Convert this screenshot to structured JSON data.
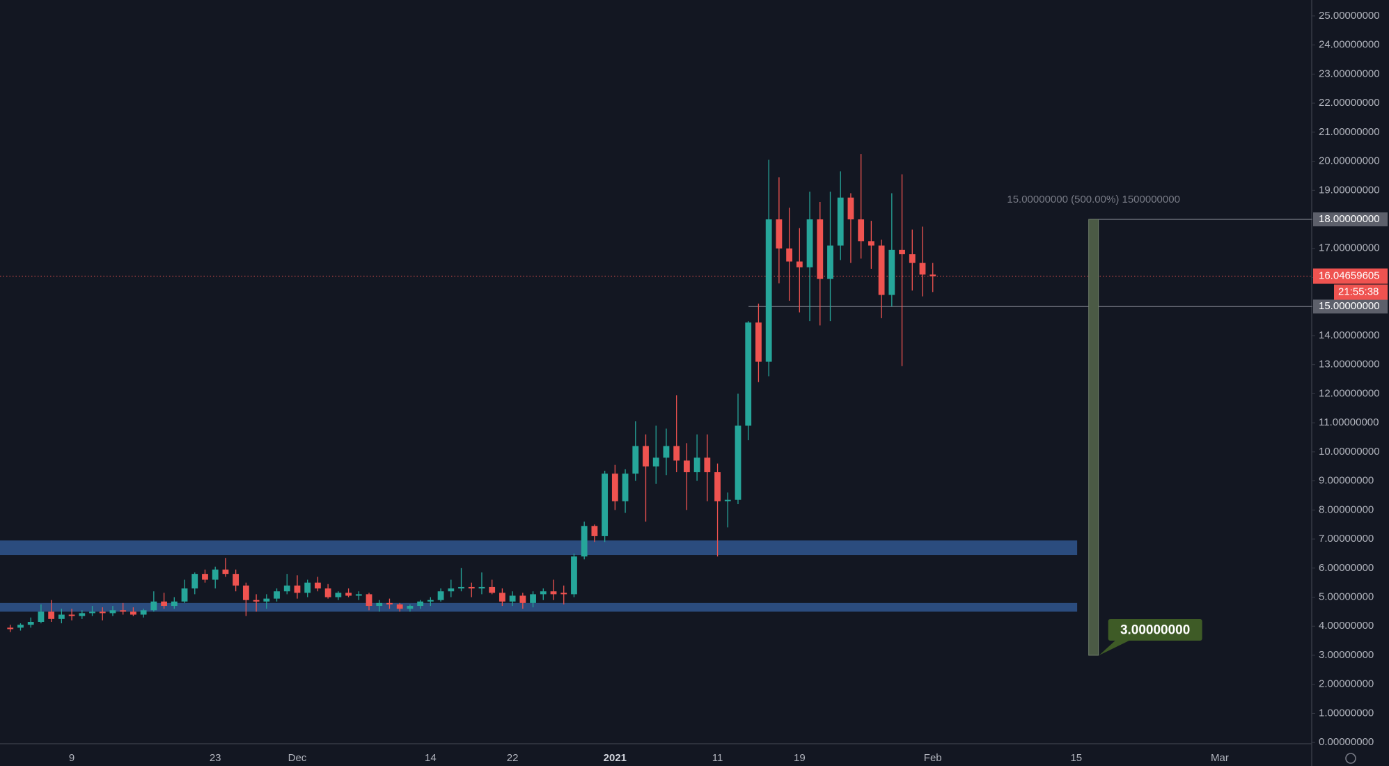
{
  "chart_data": {
    "type": "candlestick",
    "categories": [
      null,
      null,
      null,
      null,
      null,
      null,
      "9",
      null,
      null,
      null,
      null,
      null,
      null,
      null,
      null,
      null,
      null,
      null,
      null,
      null,
      "23",
      null,
      null,
      null,
      null,
      null,
      null,
      null,
      "Dec",
      null,
      null,
      null,
      null,
      null,
      null,
      null,
      null,
      null,
      null,
      null,
      null,
      "14",
      null,
      null,
      null,
      null,
      null,
      null,
      null,
      "22",
      null,
      null,
      null,
      null,
      null,
      null,
      null,
      null,
      null,
      "2021",
      null,
      null,
      null,
      null,
      null,
      null,
      null,
      null,
      null,
      "11",
      null,
      null,
      null,
      null,
      null,
      null,
      null,
      "19",
      null,
      null,
      null,
      null,
      null,
      null,
      null,
      null,
      null,
      null,
      null,
      null,
      "Feb",
      null,
      null,
      null,
      null,
      null,
      null,
      null,
      null,
      null,
      null,
      null,
      null,
      null,
      "15",
      null,
      null,
      null,
      null,
      null,
      null,
      null,
      null,
      null,
      null,
      null,
      null,
      null,
      "Mar"
    ],
    "open": [
      3.95,
      3.95,
      4.05,
      4.15,
      4.5,
      4.25,
      4.4,
      4.35,
      4.45,
      4.5,
      4.45,
      4.55,
      4.5,
      4.4,
      4.55,
      4.85,
      4.7,
      4.85,
      5.3,
      5.8,
      5.6,
      5.95,
      5.8,
      5.4,
      4.9,
      4.85,
      4.95,
      5.2,
      5.4,
      5.15,
      5.5,
      5.3,
      5.0,
      5.15,
      5.05,
      5.1,
      4.7,
      4.8,
      4.75,
      4.6,
      4.7,
      4.85,
      4.9,
      5.2,
      5.3,
      5.35,
      5.3,
      5.35,
      5.15,
      4.85,
      5.05,
      4.8,
      5.1,
      5.2,
      5.15,
      5.1,
      6.4,
      7.45,
      7.1,
      9.25,
      8.3,
      9.25,
      10.2,
      9.5,
      9.8,
      10.2,
      9.7,
      9.3,
      9.8,
      9.3,
      8.3,
      8.35,
      10.9,
      14.45,
      13.1,
      18.0,
      17.0,
      16.55,
      16.35,
      18.0,
      15.95,
      17.1,
      18.75,
      18.0,
      17.25,
      17.1,
      15.4,
      16.95,
      16.8,
      16.5,
      16.1,
      null,
      null,
      null,
      null,
      null,
      null,
      null,
      null,
      null,
      null,
      null,
      null,
      null,
      null,
      null,
      null,
      null,
      null,
      null,
      null,
      null,
      null,
      null,
      null,
      null,
      null,
      null,
      null
    ],
    "high": [
      4.05,
      4.1,
      4.3,
      4.75,
      4.9,
      4.6,
      4.6,
      4.55,
      4.7,
      4.65,
      4.7,
      4.8,
      4.65,
      4.6,
      5.2,
      5.15,
      5.0,
      5.6,
      5.85,
      5.95,
      6.05,
      6.35,
      5.95,
      5.5,
      5.1,
      5.1,
      5.3,
      5.8,
      5.75,
      5.6,
      5.7,
      5.45,
      5.2,
      5.3,
      5.2,
      5.15,
      4.9,
      4.95,
      4.8,
      4.75,
      4.9,
      5.0,
      5.3,
      5.6,
      6.0,
      5.5,
      5.85,
      5.6,
      5.3,
      5.2,
      5.15,
      5.2,
      5.3,
      5.6,
      5.4,
      6.5,
      7.6,
      7.5,
      9.35,
      9.55,
      9.4,
      11.05,
      10.6,
      10.9,
      10.8,
      11.95,
      10.3,
      10.6,
      10.6,
      9.6,
      8.6,
      12.0,
      14.5,
      15.1,
      20.05,
      19.45,
      18.4,
      17.7,
      18.95,
      18.6,
      18.95,
      19.65,
      18.9,
      20.25,
      17.95,
      17.3,
      18.9,
      19.55,
      17.65,
      17.75,
      16.5,
      null,
      null,
      null,
      null,
      null,
      null,
      null,
      null,
      null,
      null,
      null,
      null,
      null,
      null,
      null,
      null,
      null,
      null,
      null,
      null,
      null,
      null,
      null,
      null,
      null,
      null,
      null,
      null
    ],
    "low": [
      3.8,
      3.85,
      3.95,
      4.1,
      4.15,
      4.1,
      4.2,
      4.25,
      4.35,
      4.2,
      4.35,
      4.4,
      4.35,
      4.3,
      4.5,
      4.6,
      4.6,
      4.8,
      5.1,
      5.5,
      5.3,
      5.7,
      5.2,
      4.35,
      4.5,
      4.6,
      4.85,
      5.1,
      4.95,
      5.0,
      5.2,
      4.95,
      4.9,
      5.0,
      4.9,
      4.55,
      4.5,
      4.6,
      4.5,
      4.5,
      4.6,
      4.7,
      4.85,
      5.0,
      5.2,
      5.0,
      5.1,
      5.1,
      4.7,
      4.7,
      4.6,
      4.65,
      4.9,
      4.9,
      4.75,
      5.0,
      6.3,
      6.9,
      6.9,
      8.0,
      7.9,
      9.0,
      7.6,
      8.9,
      9.2,
      9.3,
      8.0,
      9.0,
      8.3,
      6.4,
      7.4,
      8.2,
      10.4,
      12.4,
      12.6,
      15.8,
      15.2,
      14.8,
      14.5,
      14.35,
      14.5,
      16.6,
      16.5,
      16.65,
      16.3,
      14.6,
      15.0,
      12.95,
      15.55,
      15.35,
      15.5,
      null,
      null,
      null,
      null,
      null,
      null,
      null,
      null,
      null,
      null,
      null,
      null,
      null,
      null,
      null,
      null,
      null,
      null,
      null,
      null,
      null,
      null,
      null,
      null,
      null,
      null,
      null,
      null
    ],
    "close": [
      3.9,
      4.05,
      4.15,
      4.5,
      4.25,
      4.4,
      4.35,
      4.45,
      4.5,
      4.45,
      4.55,
      4.5,
      4.4,
      4.55,
      4.85,
      4.7,
      4.85,
      5.3,
      5.8,
      5.6,
      5.95,
      5.8,
      5.4,
      4.9,
      4.85,
      4.95,
      5.2,
      5.4,
      5.15,
      5.5,
      5.3,
      5.0,
      5.15,
      5.05,
      5.1,
      4.7,
      4.8,
      4.75,
      4.6,
      4.7,
      4.85,
      4.9,
      5.2,
      5.3,
      5.35,
      5.3,
      5.35,
      5.15,
      4.85,
      5.05,
      4.8,
      5.1,
      5.2,
      5.1,
      5.1,
      6.4,
      7.45,
      7.1,
      9.25,
      8.3,
      9.25,
      10.2,
      9.5,
      9.8,
      10.2,
      9.7,
      9.3,
      9.8,
      9.3,
      8.3,
      8.35,
      10.9,
      14.45,
      13.1,
      18.0,
      17.0,
      16.55,
      16.35,
      18.0,
      15.95,
      17.1,
      18.75,
      18.0,
      17.25,
      17.1,
      15.4,
      16.95,
      16.8,
      16.5,
      16.1,
      16.04659605,
      null,
      null,
      null,
      null,
      null,
      null,
      null,
      null,
      null,
      null,
      null,
      null,
      null,
      null,
      null,
      null,
      null,
      null,
      null,
      null,
      null,
      null,
      null,
      null,
      null,
      null,
      null,
      null
    ],
    "up_color": "#26a69a",
    "down_color": "#ef5350",
    "ylim": [
      0,
      25
    ],
    "yticks": [
      {
        "value": 0,
        "label": "0.00000000"
      },
      {
        "value": 1,
        "label": "1.00000000"
      },
      {
        "value": 2,
        "label": "2.00000000"
      },
      {
        "value": 3,
        "label": "3.00000000"
      },
      {
        "value": 4,
        "label": "4.00000000"
      },
      {
        "value": 5,
        "label": "5.00000000"
      },
      {
        "value": 6,
        "label": "6.00000000"
      },
      {
        "value": 7,
        "label": "7.00000000"
      },
      {
        "value": 8,
        "label": "8.00000000"
      },
      {
        "value": 9,
        "label": "9.00000000"
      },
      {
        "value": 10,
        "label": "10.00000000"
      },
      {
        "value": 11,
        "label": "11.00000000"
      },
      {
        "value": 12,
        "label": "12.00000000"
      },
      {
        "value": 13,
        "label": "13.00000000"
      },
      {
        "value": 14,
        "label": "14.00000000"
      },
      {
        "value": 15,
        "label": "15.00000000"
      },
      {
        "value": 16,
        "label": "16.00000000"
      },
      {
        "value": 17,
        "label": "17.00000000"
      },
      {
        "value": 18,
        "label": "18.00000000"
      },
      {
        "value": 19,
        "label": "19.00000000"
      },
      {
        "value": 20,
        "label": "20.00000000"
      },
      {
        "value": 21,
        "label": "21.00000000"
      },
      {
        "value": 22,
        "label": "22.00000000"
      },
      {
        "value": 23,
        "label": "23.00000000"
      },
      {
        "value": 24,
        "label": "24.00000000"
      },
      {
        "value": 25,
        "label": "25.00000000"
      }
    ],
    "zones": [
      {
        "low": 6.45,
        "high": 6.95
      },
      {
        "low": 4.5,
        "high": 4.8
      }
    ],
    "zone_color": "#2b4c7e",
    "price_levels": [
      {
        "value": 18,
        "label": "18.00000000"
      },
      {
        "value": 15,
        "label": "15.00000000"
      }
    ],
    "last_price": 16.04659605,
    "countdown": "21:55:38",
    "measure": {
      "top": 18,
      "bottom": {
        "value": 3,
        "label": "3.00000000"
      },
      "label": "15.00000000 (500.00%) 1500000000",
      "color": "#4b5a45",
      "label_color": "#3e5b26"
    }
  }
}
